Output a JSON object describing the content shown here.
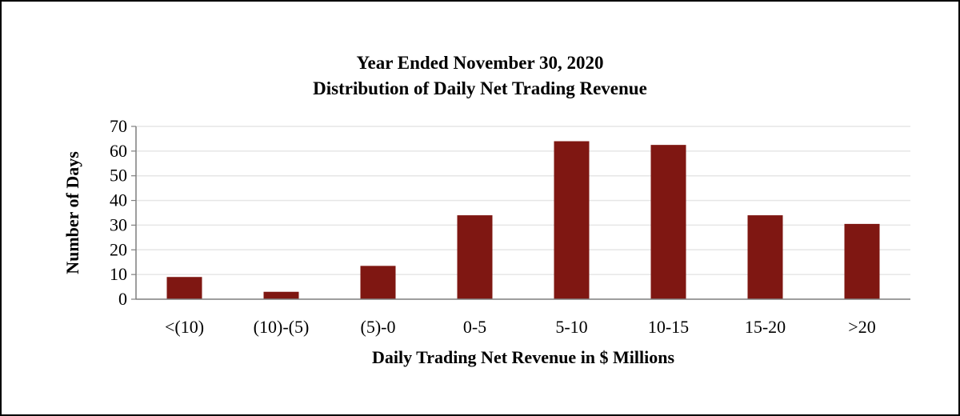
{
  "chart_data": {
    "type": "bar",
    "title": "Year Ended November 30, 2020",
    "subtitle": "Distribution of Daily Net Trading Revenue",
    "xlabel": "Daily Trading Net Revenue in $ Millions",
    "ylabel": "Number of Days",
    "categories": [
      "<(10)",
      "(10)-(5)",
      "(5)-0",
      "0-5",
      "5-10",
      "10-15",
      "15-20",
      ">20"
    ],
    "values": [
      9,
      3,
      13.5,
      34,
      64,
      62.5,
      34,
      30.5
    ],
    "ylim": [
      0,
      70
    ],
    "yticks": [
      0,
      10,
      20,
      30,
      40,
      50,
      60,
      70
    ],
    "grid": true,
    "legend": "none",
    "bar_color": "#7f1712",
    "gridline_color": "#e6e6e6",
    "axis_color": "#7f7f7f"
  }
}
